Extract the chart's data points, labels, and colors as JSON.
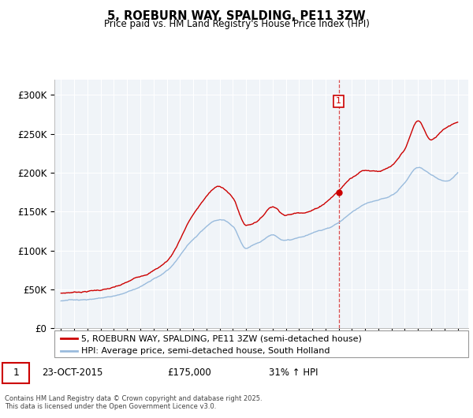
{
  "title": "5, ROEBURN WAY, SPALDING, PE11 3ZW",
  "subtitle": "Price paid vs. HM Land Registry's House Price Index (HPI)",
  "red_label": "5, ROEBURN WAY, SPALDING, PE11 3ZW (semi-detached house)",
  "blue_label": "HPI: Average price, semi-detached house, South Holland",
  "annotation_date": "23-OCT-2015",
  "annotation_price": "£175,000",
  "annotation_hpi": "31% ↑ HPI",
  "footer": "Contains HM Land Registry data © Crown copyright and database right 2025.\nThis data is licensed under the Open Government Licence v3.0.",
  "vline_year": 2016.0,
  "purchase_price": 175000,
  "ylim": [
    0,
    320000
  ],
  "yticks": [
    0,
    50000,
    100000,
    150000,
    200000,
    250000,
    300000
  ],
  "ytick_labels": [
    "£0",
    "£50K",
    "£100K",
    "£150K",
    "£200K",
    "£250K",
    "£300K"
  ],
  "red_color": "#cc0000",
  "blue_color": "#99bbdd",
  "plot_bg": "#f0f4f8",
  "grid_color": "#ffffff",
  "xlim_left": 1994.5,
  "xlim_right": 2025.8
}
